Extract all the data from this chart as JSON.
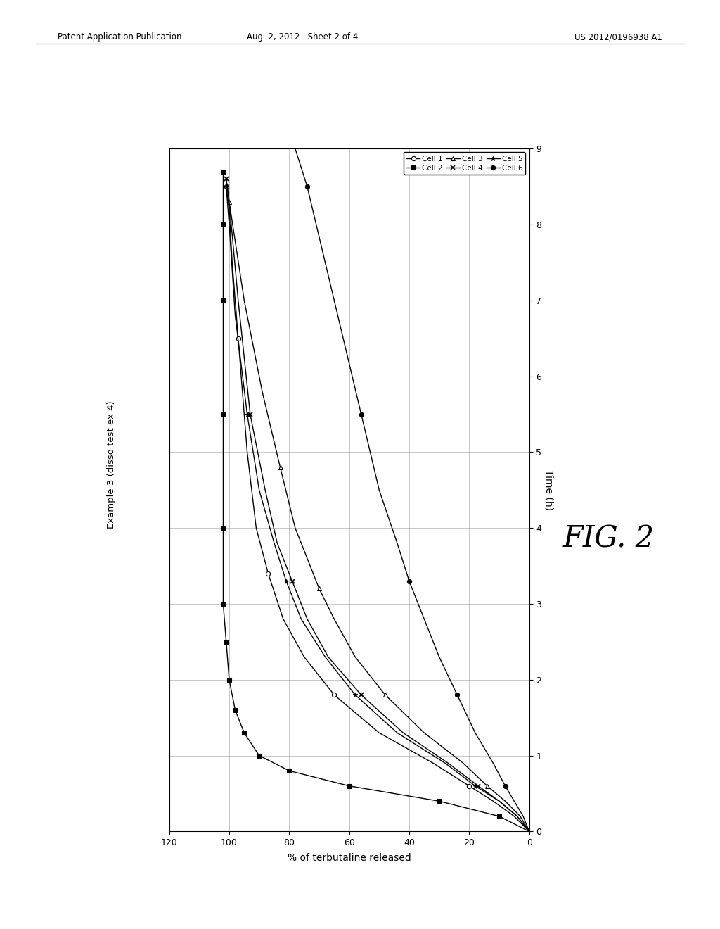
{
  "title": "Example 3 (disso test ex 4)",
  "xlabel": "% of terbutaline released",
  "ylabel": "Time (h)",
  "fig2_label": "FIG. 2",
  "header_left": "Patent Application Publication",
  "header_center": "Aug. 2, 2012   Sheet 2 of 4",
  "header_right": "US 2012/0196938 A1",
  "xlim_left": 120,
  "xlim_right": 0,
  "ylim_bottom": 0,
  "ylim_top": 9,
  "xticks": [
    0,
    20,
    40,
    60,
    80,
    100,
    120
  ],
  "yticks": [
    0,
    1,
    2,
    3,
    4,
    5,
    6,
    7,
    8,
    9
  ],
  "legend_labels": [
    "Cell 1",
    "Cell 2",
    "Cell 3",
    "Cell 4",
    "Cell 5",
    "Cell 6"
  ],
  "cell1": {
    "pct": [
      0,
      5,
      12,
      20,
      32,
      50,
      65,
      75,
      82,
      87,
      91,
      94,
      97,
      99,
      100,
      101
    ],
    "time": [
      0,
      0.2,
      0.4,
      0.6,
      0.9,
      1.3,
      1.8,
      2.3,
      2.8,
      3.4,
      4.0,
      5.0,
      6.5,
      7.5,
      8.2,
      8.5
    ]
  },
  "cell2": {
    "pct": [
      0,
      10,
      30,
      60,
      80,
      90,
      95,
      98,
      100,
      101,
      102,
      102,
      102,
      102,
      102,
      102
    ],
    "time": [
      0,
      0.2,
      0.4,
      0.6,
      0.8,
      1.0,
      1.3,
      1.6,
      2.0,
      2.5,
      3.0,
      4.0,
      5.5,
      7.0,
      8.0,
      8.7
    ]
  },
  "cell3": {
    "pct": [
      0,
      3,
      8,
      14,
      22,
      35,
      48,
      58,
      65,
      70,
      74,
      78,
      83,
      89,
      95,
      100,
      101
    ],
    "time": [
      0,
      0.2,
      0.4,
      0.6,
      0.9,
      1.3,
      1.8,
      2.3,
      2.8,
      3.2,
      3.6,
      4.0,
      4.8,
      5.8,
      7.0,
      8.3,
      8.6
    ]
  },
  "cell4": {
    "pct": [
      0,
      4,
      10,
      17,
      27,
      42,
      56,
      67,
      74,
      79,
      84,
      88,
      93,
      97,
      100,
      101
    ],
    "time": [
      0,
      0.2,
      0.4,
      0.6,
      0.9,
      1.3,
      1.8,
      2.3,
      2.8,
      3.3,
      3.8,
      4.5,
      5.5,
      7.0,
      8.3,
      8.6
    ]
  },
  "cell5": {
    "pct": [
      0,
      4,
      10,
      18,
      28,
      44,
      58,
      68,
      76,
      81,
      85,
      90,
      94,
      98,
      100,
      101
    ],
    "time": [
      0,
      0.2,
      0.4,
      0.6,
      0.9,
      1.3,
      1.8,
      2.3,
      2.8,
      3.3,
      3.8,
      4.5,
      5.5,
      6.8,
      8.0,
      8.5
    ]
  },
  "cell6": {
    "pct": [
      0,
      2,
      5,
      8,
      12,
      18,
      24,
      30,
      35,
      40,
      44,
      50,
      56,
      62,
      68,
      74,
      78
    ],
    "time": [
      0,
      0.2,
      0.4,
      0.6,
      0.9,
      1.3,
      1.8,
      2.3,
      2.8,
      3.3,
      3.8,
      4.5,
      5.5,
      6.5,
      7.5,
      8.5,
      9.0
    ]
  }
}
